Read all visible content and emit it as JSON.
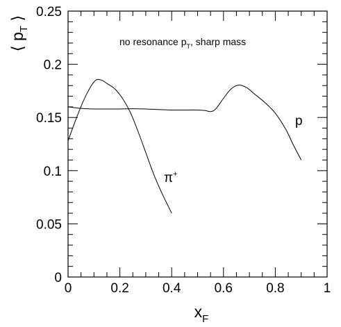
{
  "chart_data": {
    "type": "line",
    "xlabel": "x",
    "xlabel_sub": "F",
    "ylabel_main": "p",
    "ylabel_sub": "T",
    "xlim": [
      0,
      1
    ],
    "ylim": [
      0,
      0.25
    ],
    "x_ticks": [
      0,
      0.2,
      0.4,
      0.6,
      0.8,
      1
    ],
    "x_tick_labels": [
      "0",
      "0.2",
      "0.4",
      "0.6",
      "0.8",
      "1"
    ],
    "y_ticks": [
      0,
      0.05,
      0.1,
      0.15,
      0.2,
      0.25
    ],
    "y_tick_labels": [
      "0",
      "0.05",
      "0.1",
      "0.15",
      "0.2",
      "0.25"
    ],
    "grid": false,
    "annotation": {
      "text": "no resonance p",
      "sub": "T",
      "suffix": ", sharp mass"
    },
    "series": [
      {
        "name": "π",
        "name_sup": "+",
        "x": [
          0,
          0.03,
          0.06,
          0.09,
          0.11,
          0.13,
          0.15,
          0.18,
          0.21,
          0.24,
          0.27,
          0.3,
          0.33,
          0.36,
          0.4
        ],
        "y": [
          0.128,
          0.148,
          0.166,
          0.18,
          0.1855,
          0.185,
          0.182,
          0.177,
          0.168,
          0.155,
          0.137,
          0.117,
          0.097,
          0.08,
          0.06
        ]
      },
      {
        "name": "p",
        "x": [
          0,
          0.05,
          0.1,
          0.15,
          0.2,
          0.25,
          0.3,
          0.35,
          0.4,
          0.45,
          0.5,
          0.53,
          0.55,
          0.57,
          0.6,
          0.63,
          0.66,
          0.69,
          0.72,
          0.76,
          0.8,
          0.84,
          0.87,
          0.9
        ],
        "y": [
          0.16,
          0.1585,
          0.158,
          0.158,
          0.158,
          0.1582,
          0.158,
          0.1575,
          0.157,
          0.157,
          0.157,
          0.1565,
          0.1555,
          0.158,
          0.168,
          0.177,
          0.1805,
          0.178,
          0.172,
          0.164,
          0.154,
          0.139,
          0.124,
          0.11
        ]
      }
    ]
  }
}
